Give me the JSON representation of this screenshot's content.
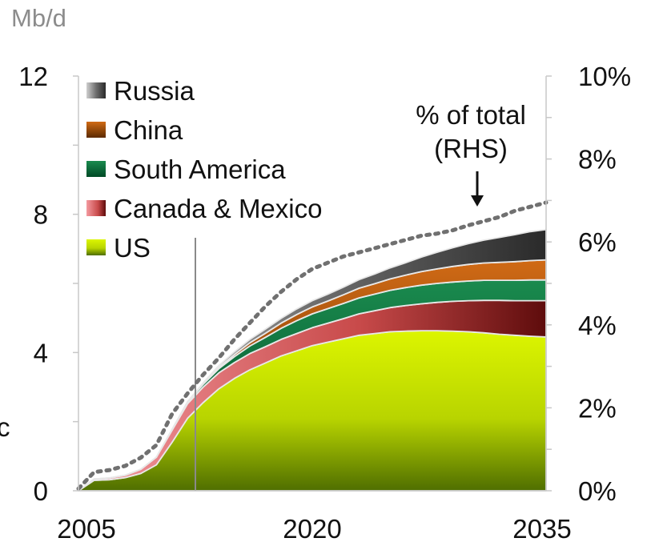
{
  "chart_data": {
    "type": "area",
    "ylabel_left": "Mb/d",
    "x_ticks": [
      "2005",
      "2020",
      "2035"
    ],
    "x": [
      2005,
      2006,
      2007,
      2008,
      2009,
      2010,
      2011,
      2012,
      2013,
      2014,
      2015,
      2016,
      2017,
      2018,
      2019,
      2020,
      2021,
      2022,
      2023,
      2024,
      2025,
      2026,
      2027,
      2028,
      2029,
      2030,
      2031,
      2032,
      2033,
      2034,
      2035
    ],
    "y_left_ticks": [
      "0",
      "4",
      "8",
      "12"
    ],
    "y_left_range": [
      0,
      12
    ],
    "y_right_ticks": [
      "0%",
      "2%",
      "4%",
      "6%",
      "8%",
      "10%"
    ],
    "y_right_range": [
      0,
      10
    ],
    "legend": [
      "Russia",
      "China",
      "South America",
      "Canada & Mexico",
      "US"
    ],
    "series": [
      {
        "name": "US",
        "color": "#b8d400",
        "values": [
          0,
          0.3,
          0.32,
          0.38,
          0.5,
          0.75,
          1.4,
          2.1,
          2.55,
          2.95,
          3.25,
          3.5,
          3.7,
          3.9,
          4.05,
          4.2,
          4.3,
          4.4,
          4.5,
          4.55,
          4.6,
          4.62,
          4.63,
          4.63,
          4.62,
          4.6,
          4.57,
          4.53,
          4.5,
          4.47,
          4.45
        ]
      },
      {
        "name": "Canada & Mexico",
        "color": "#e05a5a",
        "values": [
          0,
          0.04,
          0.05,
          0.07,
          0.12,
          0.22,
          0.35,
          0.42,
          0.45,
          0.46,
          0.46,
          0.47,
          0.47,
          0.48,
          0.5,
          0.52,
          0.55,
          0.58,
          0.62,
          0.66,
          0.7,
          0.74,
          0.78,
          0.82,
          0.86,
          0.9,
          0.94,
          0.98,
          1.0,
          1.03,
          1.05
        ]
      },
      {
        "name": "South America",
        "color": "#00703c",
        "values": [
          0,
          0,
          0,
          0,
          0,
          0,
          0.02,
          0.05,
          0.08,
          0.12,
          0.17,
          0.22,
          0.27,
          0.32,
          0.37,
          0.4,
          0.42,
          0.44,
          0.46,
          0.48,
          0.5,
          0.52,
          0.54,
          0.55,
          0.56,
          0.57,
          0.58,
          0.58,
          0.59,
          0.6,
          0.6
        ]
      },
      {
        "name": "China",
        "color": "#c65a0a",
        "values": [
          0,
          0,
          0,
          0,
          0,
          0,
          0,
          0.01,
          0.02,
          0.04,
          0.06,
          0.09,
          0.12,
          0.15,
          0.18,
          0.2,
          0.22,
          0.25,
          0.28,
          0.3,
          0.33,
          0.36,
          0.39,
          0.42,
          0.45,
          0.48,
          0.5,
          0.52,
          0.54,
          0.56,
          0.58
        ]
      },
      {
        "name": "Russia",
        "color": "#5a5a5a",
        "values": [
          0,
          0,
          0,
          0,
          0,
          0,
          0,
          0,
          0.02,
          0.05,
          0.08,
          0.1,
          0.12,
          0.14,
          0.16,
          0.18,
          0.2,
          0.22,
          0.25,
          0.28,
          0.32,
          0.36,
          0.42,
          0.48,
          0.54,
          0.6,
          0.66,
          0.72,
          0.78,
          0.84,
          0.88
        ]
      }
    ],
    "line_series": {
      "name": "% of total (RHS)",
      "style": "dotted",
      "color": "#707070",
      "axis": "right",
      "values": [
        0.05,
        0.45,
        0.5,
        0.6,
        0.8,
        1.1,
        1.85,
        2.35,
        2.8,
        3.2,
        3.65,
        4.05,
        4.45,
        4.8,
        5.1,
        5.35,
        5.5,
        5.65,
        5.75,
        5.85,
        5.95,
        6.05,
        6.15,
        6.2,
        6.28,
        6.4,
        6.5,
        6.6,
        6.75,
        6.85,
        6.95
      ]
    },
    "annotation": {
      "line1": "% of total",
      "line2": "(RHS)"
    },
    "vertical_marker_x": 2012.5,
    "grid": false,
    "legend_placement": "top-left"
  },
  "page": {
    "cropped_left_text": "c"
  }
}
